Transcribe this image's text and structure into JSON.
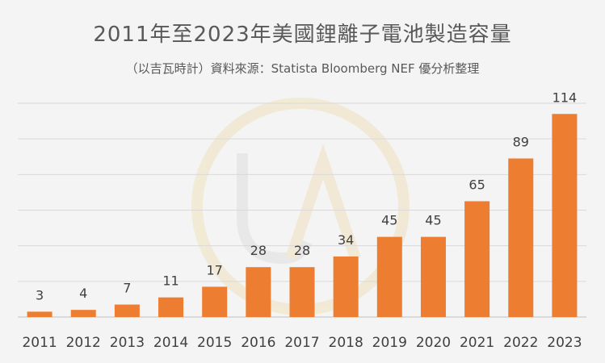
{
  "chart_data": {
    "type": "bar",
    "title": "2011年至2023年美國鋰離子電池製造容量",
    "subtitle": "（以吉瓦時計）資料來源：Statista Bloomberg NEF 優分析整理",
    "categories": [
      "2011",
      "2012",
      "2013",
      "2014",
      "2015",
      "2016",
      "2017",
      "2018",
      "2019",
      "2020",
      "2021",
      "2022",
      "2023"
    ],
    "series": [
      {
        "values": [
          3,
          4,
          7,
          11,
          17,
          28,
          28,
          34,
          45,
          45,
          65,
          89,
          114
        ]
      }
    ],
    "ylim": [
      0,
      120
    ],
    "grid": true,
    "bar_color": "#ed7d31",
    "data_labels": [
      "3",
      "4",
      "7",
      "11",
      "17",
      "28",
      "28",
      "34",
      "45",
      "45",
      "65",
      "89",
      "114"
    ]
  },
  "watermark": {
    "lettering": "UA"
  }
}
